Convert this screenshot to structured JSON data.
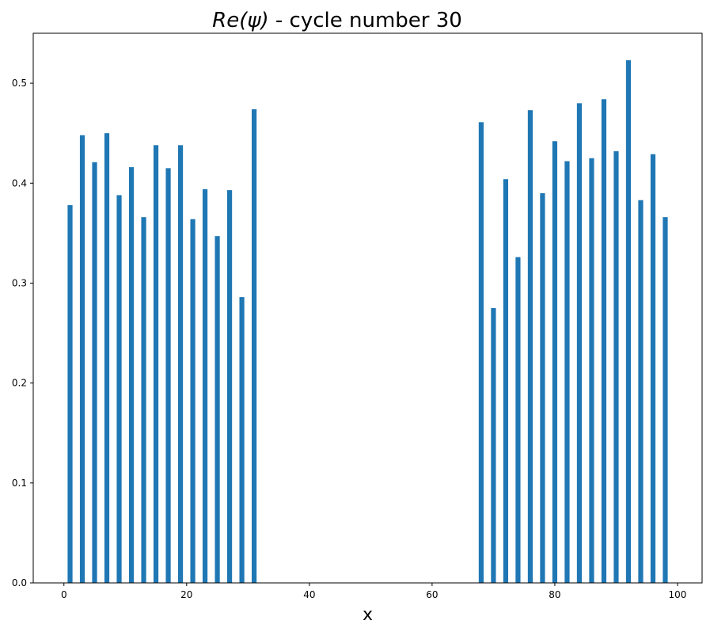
{
  "chart_data": {
    "type": "bar",
    "title_math": "Re(ψ)",
    "title_rest": " - cycle number 30",
    "xlabel": "x",
    "ylabel": "",
    "xlim": [
      -5,
      104
    ],
    "ylim": [
      0,
      0.55
    ],
    "xticks": [
      0,
      20,
      40,
      60,
      80,
      100
    ],
    "yticks": [
      0.0,
      0.1,
      0.2,
      0.3,
      0.4,
      0.5
    ],
    "ytick_labels": [
      "0.0",
      "0.1",
      "0.2",
      "0.3",
      "0.4",
      "0.5"
    ],
    "bar_width": 0.8,
    "grid": false,
    "bar_color": "#1f77b4",
    "x": [
      1,
      3,
      5,
      7,
      9,
      11,
      13,
      15,
      17,
      19,
      21,
      23,
      25,
      27,
      29,
      31,
      68,
      70,
      72,
      74,
      76,
      78,
      80,
      82,
      84,
      86,
      88,
      90,
      92,
      94,
      96,
      98
    ],
    "values": [
      0.378,
      0.448,
      0.421,
      0.45,
      0.388,
      0.416,
      0.366,
      0.438,
      0.415,
      0.438,
      0.364,
      0.394,
      0.347,
      0.393,
      0.286,
      0.474,
      0.461,
      0.275,
      0.404,
      0.326,
      0.473,
      0.39,
      0.442,
      0.422,
      0.48,
      0.425,
      0.484,
      0.432,
      0.523,
      0.383,
      0.429,
      0.366
    ]
  }
}
